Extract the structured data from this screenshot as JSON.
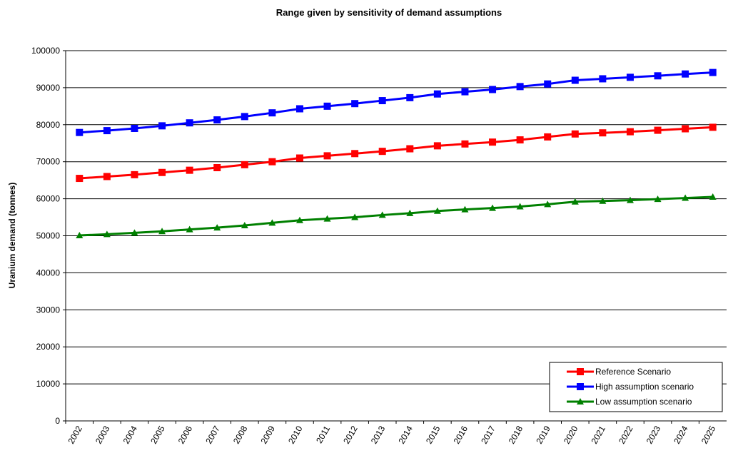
{
  "chart_data": {
    "type": "line",
    "title": "Range given by sensitivity of demand assumptions",
    "y_label": "Uranium demand (tonnes)",
    "categories": [
      "2002",
      "2003",
      "2004",
      "2005",
      "2006",
      "2007",
      "2008",
      "2009",
      "2010",
      "2011",
      "2012",
      "2013",
      "2014",
      "2015",
      "2016",
      "2017",
      "2018",
      "2019",
      "2020",
      "2021",
      "2022",
      "2023",
      "2024",
      "2025"
    ],
    "series": [
      {
        "name": "Reference Scenario",
        "color": "#ff0000",
        "marker": "square",
        "values": [
          65500,
          66000,
          66500,
          67100,
          67700,
          68400,
          69200,
          70000,
          71000,
          71600,
          72200,
          72800,
          73500,
          74300,
          74800,
          75300,
          75900,
          76700,
          77500,
          77800,
          78100,
          78500,
          78900,
          79300
        ]
      },
      {
        "name": "High assumption scenario",
        "color": "#0000ff",
        "marker": "square",
        "values": [
          77900,
          78400,
          79000,
          79700,
          80500,
          81300,
          82200,
          83200,
          84300,
          85000,
          85700,
          86500,
          87300,
          88300,
          88900,
          89500,
          90300,
          91000,
          92000,
          92400,
          92800,
          93200,
          93700,
          94100
        ]
      },
      {
        "name": "Low assumption scenario",
        "color": "#008000",
        "marker": "triangle",
        "values": [
          50100,
          50400,
          50800,
          51200,
          51700,
          52200,
          52800,
          53500,
          54200,
          54600,
          55000,
          55600,
          56100,
          56700,
          57100,
          57500,
          57900,
          58500,
          59200,
          59400,
          59600,
          59900,
          60200,
          60500
        ]
      }
    ],
    "ylim": [
      0,
      100000
    ],
    "yticks": [
      0,
      10000,
      20000,
      30000,
      40000,
      50000,
      60000,
      70000,
      80000,
      90000,
      100000
    ],
    "grid": true,
    "legend": "lower right"
  }
}
